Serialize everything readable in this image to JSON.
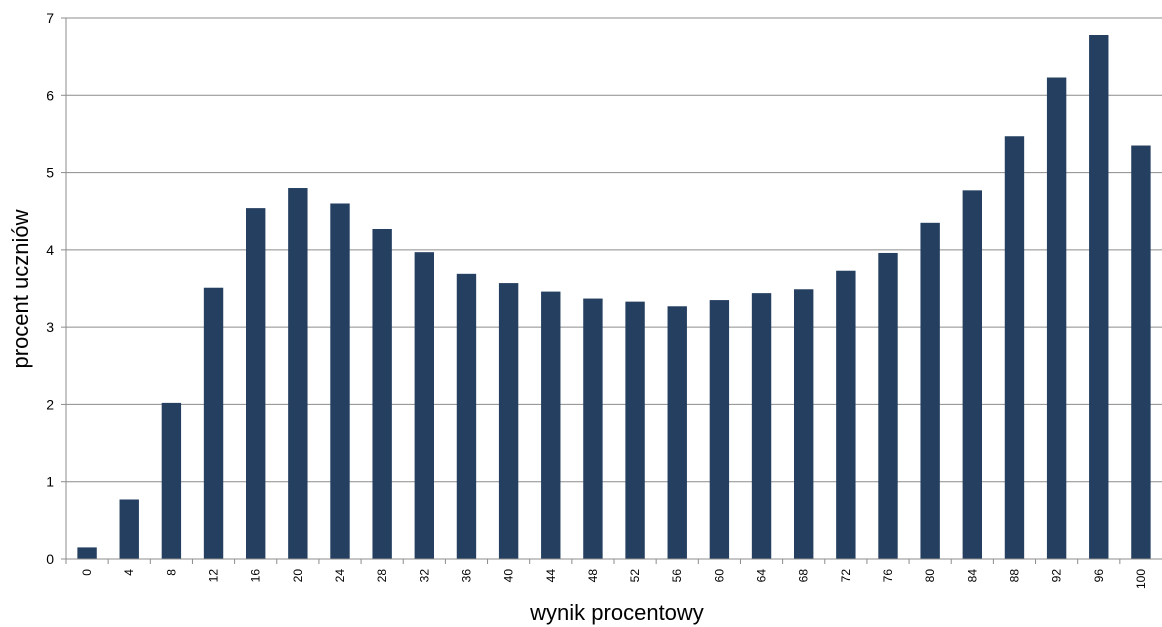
{
  "chart_data": {
    "type": "bar",
    "xlabel": "wynik procentowy",
    "ylabel": "procent uczniów",
    "ylim": [
      0,
      7
    ],
    "yticks": [
      0,
      1,
      2,
      3,
      4,
      5,
      6,
      7
    ],
    "grid": true,
    "bar_color": "#243F60",
    "categories": [
      "0",
      "4",
      "8",
      "12",
      "16",
      "20",
      "24",
      "28",
      "32",
      "36",
      "40",
      "44",
      "48",
      "52",
      "56",
      "60",
      "64",
      "68",
      "72",
      "76",
      "80",
      "84",
      "88",
      "92",
      "96",
      "100"
    ],
    "values": [
      0.15,
      0.77,
      2.02,
      3.51,
      4.54,
      4.8,
      4.6,
      4.27,
      3.97,
      3.69,
      3.57,
      3.46,
      3.37,
      3.33,
      3.27,
      3.35,
      3.44,
      3.49,
      3.73,
      3.96,
      4.35,
      4.77,
      5.47,
      6.23,
      6.78,
      5.35
    ]
  }
}
